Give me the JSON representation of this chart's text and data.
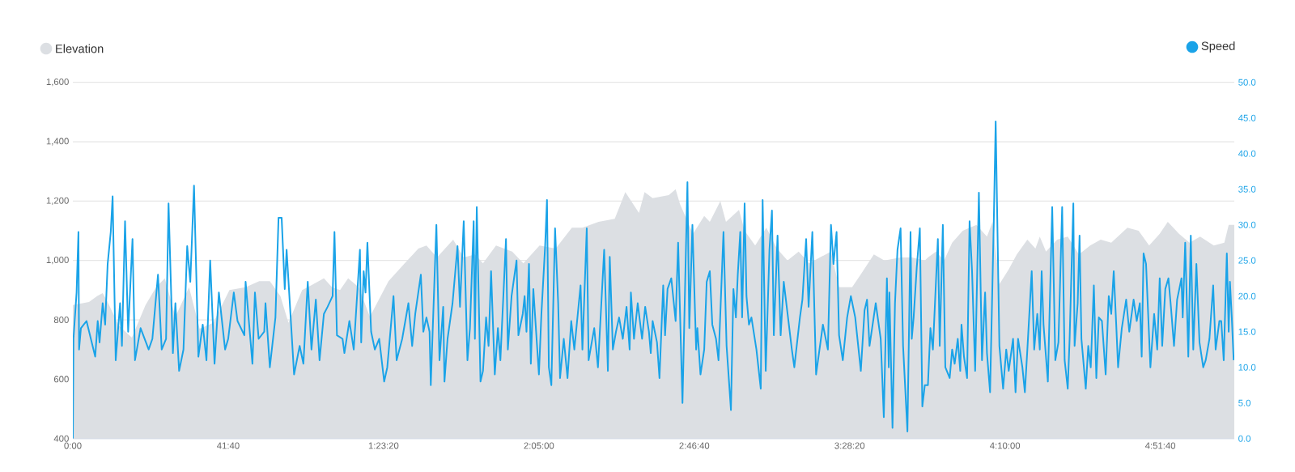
{
  "chart_data": {
    "type": "line",
    "grid": "y",
    "legend": "top",
    "xlim": [
      0,
      18690
    ],
    "xticks": [
      {
        "value": 0,
        "label": "0:00"
      },
      {
        "value": 2500,
        "label": "41:40"
      },
      {
        "value": 5000,
        "label": "1:23:20"
      },
      {
        "value": 7500,
        "label": "2:05:00"
      },
      {
        "value": 10000,
        "label": "2:46:40"
      },
      {
        "value": 12500,
        "label": "3:28:20"
      },
      {
        "value": 15000,
        "label": "4:10:00"
      },
      {
        "value": 17500,
        "label": "4:51:40"
      }
    ],
    "ylim": [
      400,
      1600
    ],
    "yticks": [
      400,
      600,
      800,
      {
        "value": 1000,
        "label": "1,000"
      },
      {
        "value": 1200,
        "label": "1,200"
      },
      {
        "value": 1400,
        "label": "1,400"
      },
      {
        "value": 1600,
        "label": "1,600"
      }
    ],
    "y2lim": [
      0,
      50
    ],
    "y2ticks": [
      {
        "value": 0,
        "label": "0.0"
      },
      {
        "value": 5,
        "label": "5.0"
      },
      {
        "value": 10,
        "label": "10.0"
      },
      {
        "value": 15,
        "label": "15.0"
      },
      {
        "value": 20,
        "label": "20.0"
      },
      {
        "value": 25,
        "label": "25.0"
      },
      {
        "value": 30,
        "label": "30.0"
      },
      {
        "value": 35,
        "label": "35.0"
      },
      {
        "value": 40,
        "label": "40.0"
      },
      {
        "value": 45,
        "label": "45.0"
      },
      {
        "value": 50,
        "label": "50.0"
      }
    ],
    "series": [
      {
        "name": "Elevation",
        "type": "area",
        "color": "#dcdfe3",
        "x": [
          0,
          260,
          390,
          480,
          560,
          740,
          950,
          1170,
          1340,
          1480,
          1650,
          1870,
          2040,
          2260,
          2520,
          2780,
          3000,
          3170,
          3340,
          3470,
          3690,
          3780,
          4040,
          4170,
          4300,
          4430,
          4600,
          4780,
          5080,
          5340,
          5560,
          5690,
          5860,
          6120,
          6290,
          6470,
          6600,
          6810,
          7070,
          7250,
          7510,
          7770,
          8030,
          8200,
          8460,
          8720,
          8890,
          9110,
          9200,
          9330,
          9590,
          9700,
          9770,
          9980,
          10160,
          10250,
          10420,
          10510,
          10720,
          10810,
          10980,
          11160,
          11330,
          11500,
          11680,
          11850,
          12020,
          12200,
          12330,
          12540,
          12670,
          12890,
          13060,
          13320,
          13500,
          13710,
          13760,
          13890,
          14020,
          14150,
          14320,
          14540,
          14710,
          14800,
          14910,
          15060,
          15190,
          15360,
          15490,
          15560,
          15660,
          15840,
          16010,
          16190,
          16370,
          16540,
          16710,
          16970,
          17150,
          17320,
          17490,
          17620,
          17800,
          17970,
          18140,
          18360,
          18530,
          18600,
          18690
        ],
        "values": [
          850,
          860,
          880,
          890,
          860,
          780,
          740,
          850,
          910,
          940,
          810,
          910,
          770,
          790,
          900,
          910,
          930,
          930,
          880,
          790,
          900,
          910,
          940,
          910,
          900,
          940,
          910,
          810,
          930,
          990,
          1040,
          1050,
          1010,
          1070,
          1010,
          1020,
          990,
          1050,
          1030,
          990,
          1050,
          1040,
          1110,
          1110,
          1130,
          1140,
          1230,
          1160,
          1230,
          1210,
          1220,
          1240,
          1190,
          1090,
          1150,
          1130,
          1200,
          1130,
          1170,
          1100,
          1050,
          1110,
          1040,
          1000,
          1030,
          990,
          1010,
          1030,
          910,
          910,
          950,
          1020,
          1000,
          1010,
          1010,
          1000,
          1010,
          1030,
          1000,
          1060,
          1100,
          1120,
          1080,
          1130,
          920,
          970,
          1020,
          1070,
          1040,
          1080,
          1030,
          1070,
          1080,
          1020,
          1050,
          1070,
          1060,
          1110,
          1100,
          1050,
          1090,
          1130,
          1090,
          1060,
          1080,
          1050,
          1060,
          1120,
          1120
        ]
      },
      {
        "name": "Speed",
        "axis": "y2",
        "color": "#1aa3e8",
        "x": [
          0,
          10,
          60,
          90,
          100,
          130,
          220,
          360,
          400,
          430,
          480,
          520,
          560,
          610,
          640,
          690,
          760,
          790,
          840,
          890,
          960,
          1000,
          1090,
          1220,
          1280,
          1370,
          1430,
          1500,
          1540,
          1610,
          1650,
          1710,
          1780,
          1840,
          1890,
          1950,
          2020,
          2090,
          2150,
          2210,
          2280,
          2350,
          2450,
          2500,
          2590,
          2650,
          2760,
          2780,
          2890,
          2930,
          2990,
          3080,
          3100,
          3170,
          3260,
          3310,
          3360,
          3410,
          3440,
          3560,
          3650,
          3710,
          3780,
          3840,
          3910,
          3970,
          4040,
          4100,
          4180,
          4210,
          4250,
          4340,
          4370,
          4450,
          4520,
          4620,
          4640,
          4680,
          4710,
          4740,
          4800,
          4860,
          4930,
          5010,
          5060,
          5160,
          5210,
          5300,
          5400,
          5460,
          5510,
          5600,
          5640,
          5690,
          5740,
          5760,
          5850,
          5900,
          5960,
          5980,
          6030,
          6110,
          6190,
          6230,
          6290,
          6350,
          6390,
          6450,
          6470,
          6500,
          6560,
          6600,
          6650,
          6690,
          6730,
          6790,
          6840,
          6880,
          6970,
          7000,
          7060,
          7140,
          7170,
          7240,
          7270,
          7300,
          7340,
          7370,
          7410,
          7500,
          7540,
          7600,
          7630,
          7660,
          7700,
          7760,
          7810,
          7840,
          7900,
          7960,
          8020,
          8070,
          8170,
          8200,
          8270,
          8300,
          8390,
          8450,
          8550,
          8610,
          8640,
          8690,
          8740,
          8790,
          8850,
          8910,
          8960,
          8980,
          9030,
          9090,
          9160,
          9210,
          9270,
          9300,
          9330,
          9400,
          9440,
          9500,
          9530,
          9570,
          9630,
          9700,
          9740,
          9810,
          9890,
          9920,
          9970,
          10030,
          10050,
          10100,
          10160,
          10200,
          10250,
          10290,
          10350,
          10390,
          10470,
          10520,
          10590,
          10630,
          10670,
          10700,
          10740,
          10770,
          10810,
          10840,
          10880,
          10920,
          11000,
          11070,
          11100,
          11150,
          11210,
          11250,
          11280,
          11340,
          11390,
          11440,
          11570,
          11610,
          11700,
          11740,
          11800,
          11840,
          11900,
          11960,
          12070,
          12150,
          12200,
          12240,
          12290,
          12330,
          12390,
          12460,
          12520,
          12590,
          12680,
          12740,
          12780,
          12820,
          12920,
          13000,
          13050,
          13100,
          13130,
          13140,
          13190,
          13230,
          13270,
          13320,
          13360,
          13430,
          13480,
          13500,
          13530,
          13580,
          13630,
          13670,
          13710,
          13760,
          13800,
          13840,
          13920,
          13950,
          14000,
          14040,
          14110,
          14150,
          14190,
          14240,
          14280,
          14300,
          14340,
          14390,
          14430,
          14470,
          14520,
          14580,
          14630,
          14680,
          14710,
          14760,
          14820,
          14850,
          14910,
          14970,
          15020,
          15060,
          15130,
          15170,
          15210,
          15280,
          15320,
          15360,
          15430,
          15470,
          15520,
          15560,
          15590,
          15620,
          15690,
          15760,
          15810,
          15860,
          15920,
          15960,
          16010,
          16040,
          16100,
          16120,
          16170,
          16200,
          16230,
          16300,
          16340,
          16380,
          16430,
          16470,
          16510,
          16560,
          16620,
          16670,
          16710,
          16750,
          16790,
          16820,
          16880,
          16950,
          17000,
          17070,
          17120,
          17170,
          17200,
          17230,
          17270,
          17340,
          17400,
          17450,
          17490,
          17530,
          17580,
          17630,
          17670,
          17720,
          17770,
          17840,
          17860,
          17900,
          17950,
          17990,
          18030,
          18080,
          18130,
          18190,
          18230,
          18290,
          18350,
          18390,
          18450,
          18480,
          18520,
          18570,
          18600,
          18620,
          18650,
          18680
        ],
        "values": [
          0,
          14,
          20.5,
          29,
          12.5,
          15.5,
          16.5,
          11.5,
          16.5,
          13.5,
          19,
          16,
          24.5,
          29,
          34,
          11,
          19,
          13,
          30.5,
          15,
          28,
          11,
          15.5,
          12.5,
          14,
          23,
          12.5,
          14,
          33,
          12,
          19,
          9.5,
          12.5,
          27,
          22,
          35.5,
          11.5,
          16,
          11,
          25,
          10.5,
          20.5,
          12.5,
          14,
          20.5,
          16.5,
          14.5,
          22,
          10.5,
          20.5,
          14,
          15,
          19,
          10,
          17,
          31,
          31,
          21,
          26.5,
          9,
          13,
          10.5,
          22,
          12.5,
          19.5,
          11,
          17.5,
          18.5,
          20,
          29,
          14.5,
          14,
          12,
          16.5,
          12.5,
          26.5,
          13.5,
          23.5,
          20.5,
          27.5,
          15,
          12.5,
          14,
          8,
          10,
          20,
          11,
          14,
          19,
          13,
          17.5,
          23,
          15,
          17,
          15,
          7.5,
          30,
          11,
          18.5,
          8,
          14,
          19,
          27,
          18.5,
          30.5,
          11,
          15.5,
          30.5,
          14,
          32.5,
          8,
          9.5,
          17,
          13,
          23.5,
          9,
          15.5,
          11,
          28,
          12.5,
          20,
          25,
          14.5,
          17.5,
          20,
          15,
          24.5,
          10.5,
          21,
          9,
          17.5,
          27,
          33.5,
          10,
          7.5,
          29.5,
          19,
          8.5,
          14,
          8.5,
          16.5,
          12.5,
          21.5,
          12.5,
          29.5,
          11,
          15.5,
          10,
          26.5,
          9.5,
          25.5,
          12.5,
          15,
          17,
          14,
          18.5,
          12.5,
          20.5,
          14,
          19,
          14,
          18.5,
          15,
          12,
          16.5,
          13.5,
          8.5,
          21.5,
          14.5,
          21,
          22.5,
          16.5,
          27.5,
          5,
          36,
          15.5,
          30,
          12.5,
          15.5,
          9,
          12.5,
          22,
          23.5,
          16,
          14,
          11,
          29,
          13,
          4,
          21,
          17,
          23,
          29,
          17,
          33,
          20,
          16,
          17,
          12.5,
          7,
          33.5,
          9.5,
          26.5,
          32,
          14.5,
          28.5,
          14.5,
          22,
          12.5,
          10,
          17,
          19.5,
          28,
          18.5,
          29,
          9,
          16,
          12.5,
          30,
          24.5,
          29,
          14.5,
          11,
          17,
          20,
          17,
          9.5,
          18,
          19.5,
          13,
          19,
          14,
          3,
          22.5,
          10,
          20.5,
          1.5,
          19,
          26.5,
          29.5,
          13,
          1,
          29,
          14,
          17,
          24,
          29.5,
          4.5,
          7.5,
          7.5,
          15.5,
          12.5,
          28,
          13,
          30,
          10,
          8.5,
          12.5,
          10.5,
          14,
          9.5,
          16,
          11.5,
          8.5,
          30.5,
          23.5,
          9.5,
          34.5,
          11,
          20.5,
          12,
          6.5,
          30.5,
          44.5,
          13,
          7,
          12.5,
          9.5,
          14,
          6.5,
          14,
          10,
          6.5,
          12.5,
          23.5,
          12.5,
          17.5,
          12.5,
          23.5,
          16,
          8,
          32.5,
          11,
          13.5,
          32.5,
          11,
          7,
          14,
          33,
          13,
          19,
          28.5,
          14,
          7,
          13,
          10,
          21.5,
          8.5,
          17,
          16.5,
          9,
          20,
          17.5,
          23.5,
          16,
          10,
          15.5,
          19.5,
          15,
          19.5,
          16.5,
          19,
          11.5,
          26,
          24.5,
          10,
          17.5,
          12.5,
          22.5,
          13,
          21,
          22.5,
          18.5,
          13,
          19.5,
          22.5,
          17,
          27.5,
          11.5,
          28.5,
          12.5,
          24.5,
          13.5,
          10,
          11,
          14,
          21.5,
          12.5,
          16.5,
          16.5,
          11,
          26,
          15,
          22,
          17,
          11
        ]
      }
    ]
  }
}
